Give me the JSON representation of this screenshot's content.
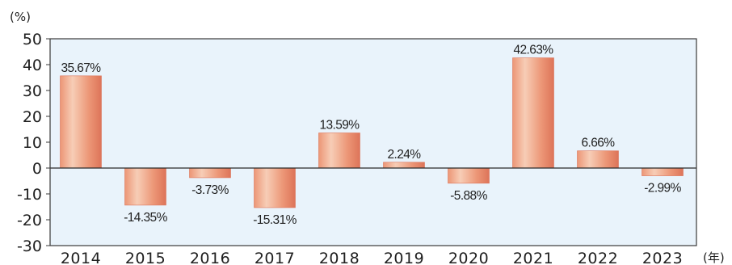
{
  "chart_data": {
    "type": "bar",
    "y_unit": "(%)",
    "x_unit": "(年)",
    "categories": [
      "2014",
      "2015",
      "2016",
      "2017",
      "2018",
      "2019",
      "2020",
      "2021",
      "2022",
      "2023"
    ],
    "values": [
      35.67,
      -14.35,
      -3.73,
      -15.31,
      13.59,
      2.24,
      -5.88,
      42.63,
      6.66,
      -2.99
    ],
    "data_labels": [
      "35.67%",
      "-14.35%",
      "-3.73%",
      "-15.31%",
      "13.59%",
      "2.24%",
      "-5.88%",
      "42.63%",
      "6.66%",
      "-2.99%"
    ],
    "ylim": [
      -30,
      50
    ],
    "y_ticks": [
      "50",
      "40",
      "30",
      "20",
      "10",
      "0",
      "-10",
      "-20",
      "-30"
    ],
    "y_tick_values": [
      50,
      40,
      30,
      20,
      10,
      0,
      -10,
      -20,
      -30
    ],
    "grid": false,
    "legend": "none",
    "colors": {
      "plot_background": "#e9f3fb",
      "frame": "#3a3a3a",
      "bar_light": "#f7cdb6",
      "bar_mid": "#ec9676",
      "bar_dark": "#dd7459",
      "zero_line": "#2a2a2a"
    }
  }
}
